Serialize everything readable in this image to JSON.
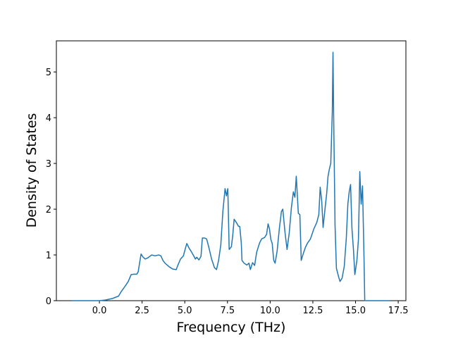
{
  "chart_data": {
    "type": "line",
    "xlabel": "Frequency (THz)",
    "ylabel": "Density of States",
    "color": "#1f77b4",
    "x": [
      -1.61,
      0,
      0.37,
      0.78,
      1.12,
      1.28,
      1.53,
      1.69,
      1.86,
      2.02,
      2.19,
      2.27,
      2.44,
      2.56,
      2.69,
      2.85,
      3.06,
      3.26,
      3.47,
      3.6,
      3.72,
      3.84,
      4.09,
      4.3,
      4.5,
      4.59,
      4.75,
      4.92,
      5.04,
      5.12,
      5.25,
      5.37,
      5.54,
      5.62,
      5.7,
      5.83,
      5.95,
      6.03,
      6.16,
      6.28,
      6.4,
      6.57,
      6.74,
      6.86,
      6.98,
      7.11,
      7.23,
      7.36,
      7.44,
      7.52,
      7.6,
      7.73,
      7.81,
      7.89,
      8.02,
      8.14,
      8.22,
      8.31,
      8.35,
      8.47,
      8.64,
      8.76,
      8.84,
      8.97,
      9.09,
      9.21,
      9.38,
      9.5,
      9.67,
      9.79,
      9.88,
      9.96,
      10.04,
      10.12,
      10.21,
      10.29,
      10.41,
      10.54,
      10.66,
      10.74,
      10.87,
      10.99,
      11.12,
      11.24,
      11.36,
      11.45,
      11.53,
      11.65,
      11.74,
      11.82,
      11.94,
      12.07,
      12.19,
      12.36,
      12.56,
      12.73,
      12.85,
      12.93,
      13.02,
      13.1,
      13.22,
      13.31,
      13.39,
      13.47,
      13.55,
      13.64,
      13.68,
      13.72,
      13.8,
      13.88,
      14.01,
      14.09,
      14.21,
      14.34,
      14.46,
      14.55,
      14.63,
      14.71,
      14.79,
      14.88,
      14.96,
      15.08,
      15.17,
      15.25,
      15.33,
      15.41,
      15.5,
      15.54,
      17.0
    ],
    "values": [
      0,
      0,
      0.015,
      0.05,
      0.1,
      0.2,
      0.33,
      0.42,
      0.57,
      0.58,
      0.58,
      0.63,
      1.02,
      0.95,
      0.91,
      0.94,
      1.0,
      0.98,
      1.0,
      0.98,
      0.88,
      0.82,
      0.74,
      0.69,
      0.68,
      0.77,
      0.91,
      0.98,
      1.15,
      1.25,
      1.15,
      1.08,
      0.97,
      0.91,
      0.95,
      0.89,
      0.97,
      1.37,
      1.37,
      1.35,
      1.18,
      0.91,
      0.72,
      0.68,
      0.88,
      1.22,
      1.95,
      2.45,
      2.29,
      2.45,
      1.12,
      1.18,
      1.43,
      1.78,
      1.71,
      1.63,
      1.62,
      1.26,
      0.88,
      0.82,
      0.78,
      0.82,
      0.68,
      0.83,
      0.77,
      1.06,
      1.26,
      1.35,
      1.38,
      1.45,
      1.68,
      1.57,
      1.34,
      1.25,
      0.88,
      0.82,
      1.09,
      1.58,
      1.95,
      2.0,
      1.49,
      1.12,
      1.49,
      2.02,
      2.38,
      2.26,
      2.72,
      1.91,
      1.88,
      0.88,
      1.03,
      1.17,
      1.26,
      1.35,
      1.57,
      1.71,
      1.88,
      2.48,
      2.18,
      1.6,
      2.03,
      2.34,
      2.72,
      2.88,
      3.0,
      4.14,
      5.43,
      4.03,
      1.65,
      0.71,
      0.52,
      0.42,
      0.49,
      0.75,
      1.37,
      2.11,
      2.38,
      2.54,
      1.58,
      1.11,
      0.57,
      0.88,
      1.34,
      2.82,
      2.11,
      2.51,
      0.88,
      0,
      0
    ],
    "xlim": [
      -2.52,
      17.95
    ],
    "ylim": [
      0,
      5.68
    ],
    "xticks": [
      {
        "value": 0,
        "label": "0.0"
      },
      2.5,
      {
        "value": 5,
        "label": "5.0"
      },
      7.5,
      {
        "value": 10,
        "label": "10.0"
      },
      12.5,
      {
        "value": 15,
        "label": "15.0"
      },
      17.5
    ],
    "yticks": [
      0,
      1,
      2,
      3,
      4,
      5
    ]
  }
}
